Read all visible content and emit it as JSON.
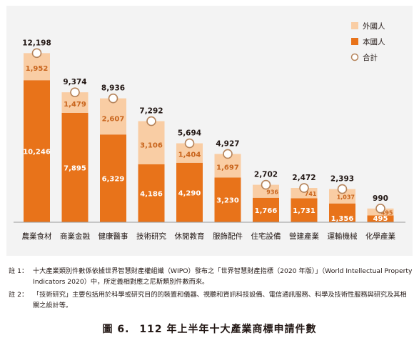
{
  "chart_data": {
    "type": "bar",
    "stacked": true,
    "categories": [
      "農業食材",
      "商業金融",
      "健康醫事",
      "技術研究",
      "休閒教育",
      "服飾配件",
      "住宅設備",
      "營建產業",
      "運輸機械",
      "化學產業"
    ],
    "series": [
      {
        "name": "本國人",
        "values": [
          10246,
          7895,
          6329,
          4186,
          4290,
          3230,
          1766,
          1731,
          1356,
          495
        ]
      },
      {
        "name": "外國人",
        "values": [
          1952,
          1479,
          2607,
          3106,
          1404,
          1697,
          936,
          741,
          1037,
          495
        ]
      }
    ],
    "totals": {
      "name": "合計",
      "values": [
        12198,
        9374,
        8936,
        7292,
        5694,
        4927,
        2702,
        2472,
        2393,
        990
      ]
    },
    "value_labels": {
      "domestic": [
        "10,246",
        "7,895",
        "6,329",
        "4,186",
        "4,290",
        "3,230",
        "1,766",
        "1,731",
        "1,356",
        "495"
      ],
      "foreign": [
        "1,952",
        "1,479",
        "2,607",
        "3,106",
        "1,404",
        "1,697",
        "936",
        "741",
        "1,037",
        "495"
      ],
      "total": [
        "12,198",
        "9,374",
        "8,936",
        "7,292",
        "5,694",
        "4,927",
        "2,702",
        "2,472",
        "2,393",
        "990"
      ]
    },
    "ylim": [
      0,
      14000
    ],
    "grid": false,
    "legend": "top-right",
    "colors": {
      "domestic": "#e8731a",
      "foreign": "#f9cda4",
      "total_marker": "#b5835a",
      "label_domestic": "#ffffff",
      "label_foreign": "#c8641c"
    }
  },
  "legend": [
    {
      "key": "foreign",
      "label": "外國人"
    },
    {
      "key": "domestic",
      "label": "本國人"
    },
    {
      "key": "total",
      "label": "合計"
    }
  ],
  "notes": [
    {
      "label": "註 1：",
      "text": "十大產業類別件數係依據世界智慧財產權組織（WIPO）發布之「世界智慧財產指標（2020 年版）」（World Intellectual Property Indicators 2020）中，所定義相對應之尼斯類別件數而來。"
    },
    {
      "label": "註 2：",
      "text": "「技術研究」主要包括用於科學或研究目的的裝置和儀器、視聽和資訊科技設備、電信通訊服務、科學及技術性服務與研究及其相關之設計等。"
    }
  ],
  "caption": {
    "figure": "圖 6.",
    "title": "112 年上半年十大產業商標申請件數"
  }
}
